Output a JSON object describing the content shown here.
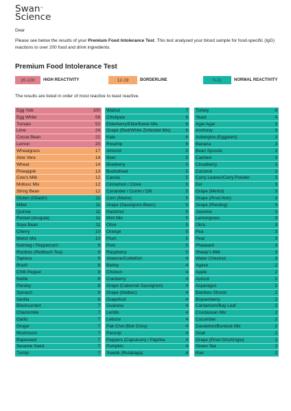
{
  "brand": {
    "line1": "Swan",
    "line2": "Science",
    "tm": "™"
  },
  "greeting": "Dear",
  "intro": {
    "pre": "Please see below the results of your ",
    "bold": "Premium Food Intolerance Test",
    "post": ". This test analysed your blood sample for food-specific (IgG) reactions to over 200 food and drink ingredients."
  },
  "title": "Premium Food Intolerance Test",
  "legend": [
    {
      "range": "20-100",
      "label": "HIGH REACTIVITY",
      "color": "#e0828e"
    },
    {
      "range": "12-19",
      "label": "BORDERLINE",
      "color": "#f6a96d"
    },
    {
      "range": "0-11",
      "label": "NORMAL REACTIVITY",
      "color": "#17b5a3"
    }
  ],
  "subnote": "The results are listed in order of most reactive to least reactive.",
  "colors": {
    "high": "#e0828e",
    "borderline": "#f6a96d",
    "normal": "#17b5a3"
  },
  "columns": [
    [
      {
        "name": "Egg Yolk",
        "value": "100"
      },
      {
        "name": "Egg White",
        "value": "58"
      },
      {
        "name": "Tomato",
        "value": "52"
      },
      {
        "name": "Lime",
        "value": "24"
      },
      {
        "name": "Cocoa Bean",
        "value": "22"
      },
      {
        "name": "Lemon",
        "value": "20"
      },
      {
        "name": "Wheatgrass",
        "value": "17"
      },
      {
        "name": "Aloe Vera",
        "value": "14"
      },
      {
        "name": "Wheat",
        "value": "14"
      },
      {
        "name": "Pineapple",
        "value": "13"
      },
      {
        "name": "Cow's Milk",
        "value": "12"
      },
      {
        "name": "Mollusc Mix",
        "value": "12"
      },
      {
        "name": "String Bean",
        "value": "12"
      },
      {
        "name": "Gluten (Gliadin)",
        "value": "11"
      },
      {
        "name": "Millet",
        "value": "11"
      },
      {
        "name": "Quinoa",
        "value": "11"
      },
      {
        "name": "Rocket (Arugula)",
        "value": "11"
      },
      {
        "name": "Soya Bean",
        "value": "11"
      },
      {
        "name": "Cherry",
        "value": "10"
      },
      {
        "name": "Melon Mix",
        "value": "10"
      },
      {
        "name": "Nutmeg / Peppercorn",
        "value": "9"
      },
      {
        "name": "Rooibos (Redbush Tea)",
        "value": "9"
      },
      {
        "name": "Tapioca",
        "value": "9"
      },
      {
        "name": "Brazil",
        "value": "8"
      },
      {
        "name": "Chilli Pepper",
        "value": "8"
      },
      {
        "name": "Nettle",
        "value": "8"
      },
      {
        "name": "Parsley",
        "value": "8"
      },
      {
        "name": "Spinach",
        "value": "8"
      },
      {
        "name": "Vanilla",
        "value": "8"
      },
      {
        "name": "Blackcurrant",
        "value": "7"
      },
      {
        "name": "Chamomile",
        "value": "7"
      },
      {
        "name": "Garlic",
        "value": "7"
      },
      {
        "name": "Ginger",
        "value": "7"
      },
      {
        "name": "Mushroom",
        "value": "7"
      },
      {
        "name": "Rapeseed",
        "value": "7"
      },
      {
        "name": "Sesame Seed",
        "value": "7"
      },
      {
        "name": "Turnip",
        "value": "7"
      }
    ],
    [
      {
        "name": "Walnut",
        "value": "7"
      },
      {
        "name": "Chickpea",
        "value": "6"
      },
      {
        "name": "Elderberry/Elderflower Mix",
        "value": "6"
      },
      {
        "name": "Grape (Red/White Zinfandel Mix)",
        "value": "6"
      },
      {
        "name": "Kale",
        "value": "6"
      },
      {
        "name": "Rosehip",
        "value": "6"
      },
      {
        "name": "Almond",
        "value": "5"
      },
      {
        "name": "Beet",
        "value": "5"
      },
      {
        "name": "Blueberry",
        "value": "5"
      },
      {
        "name": "Buckwheat",
        "value": "5"
      },
      {
        "name": "Cassia",
        "value": "5"
      },
      {
        "name": "Cinnamon / Clove",
        "value": "5"
      },
      {
        "name": "Coriander / Cumin / Dill",
        "value": "5"
      },
      {
        "name": "Corn (Maize)",
        "value": "5"
      },
      {
        "name": "Grape (Sauvignon Blanc)",
        "value": "5"
      },
      {
        "name": "Hazelnut",
        "value": "5"
      },
      {
        "name": "Mint Mix",
        "value": "5"
      },
      {
        "name": "Olive",
        "value": "5"
      },
      {
        "name": "Orange",
        "value": "5"
      },
      {
        "name": "Plum",
        "value": "5"
      },
      {
        "name": "Pork",
        "value": "5"
      },
      {
        "name": "Raspberry",
        "value": "5"
      },
      {
        "name": "Abalone/Cuttlefish",
        "value": "4"
      },
      {
        "name": "Barley",
        "value": "4"
      },
      {
        "name": "Chicken",
        "value": "4"
      },
      {
        "name": "Cranberry",
        "value": "4"
      },
      {
        "name": "Grape (Cabernet Sauvignon)",
        "value": "4"
      },
      {
        "name": "Grape (Malbec)",
        "value": "4"
      },
      {
        "name": "Grapefruit",
        "value": "4"
      },
      {
        "name": "Guarana",
        "value": "4"
      },
      {
        "name": "Lentils",
        "value": "4"
      },
      {
        "name": "Lettuce",
        "value": "4"
      },
      {
        "name": "Pak Choi (Bok Choy)",
        "value": "4"
      },
      {
        "name": "Parsnip",
        "value": "4"
      },
      {
        "name": "Peppers (Capsicum) / Paprika",
        "value": "4"
      },
      {
        "name": "Pumpkin",
        "value": "4"
      },
      {
        "name": "Swede (Rutabaga)",
        "value": "4"
      }
    ],
    [
      {
        "name": "Turkey",
        "value": "4"
      },
      {
        "name": "Yeast",
        "value": "4"
      },
      {
        "name": "Agar Agar",
        "value": "3"
      },
      {
        "name": "Anchovy",
        "value": "3"
      },
      {
        "name": "Aubergine (Eggplant)",
        "value": "3"
      },
      {
        "name": "Banana",
        "value": "3"
      },
      {
        "name": "Bean Sprouts",
        "value": "3"
      },
      {
        "name": "Cashew",
        "value": "3"
      },
      {
        "name": "Cloudberry",
        "value": "3"
      },
      {
        "name": "Coconut",
        "value": "3"
      },
      {
        "name": "Curry Leaves/Curry Powder",
        "value": "3"
      },
      {
        "name": "Eel",
        "value": "3"
      },
      {
        "name": "Grape (Merlot)",
        "value": "3"
      },
      {
        "name": "Grape (Pinot Noir)",
        "value": "3"
      },
      {
        "name": "Grape (Riesling)",
        "value": "3"
      },
      {
        "name": "Jasmine",
        "value": "3"
      },
      {
        "name": "Lemongrass",
        "value": "3"
      },
      {
        "name": "Okra",
        "value": "3"
      },
      {
        "name": "Pea",
        "value": "3"
      },
      {
        "name": "Pear",
        "value": "3"
      },
      {
        "name": "Pheasant",
        "value": "3"
      },
      {
        "name": "Sheep's Milk",
        "value": "3"
      },
      {
        "name": "Water Chestnut",
        "value": "3"
      },
      {
        "name": "Agave",
        "value": "2"
      },
      {
        "name": "Apple",
        "value": "2"
      },
      {
        "name": "Apricot",
        "value": "2"
      },
      {
        "name": "Asparagus",
        "value": "2"
      },
      {
        "name": "Bamboo Shoots",
        "value": "2"
      },
      {
        "name": "Boysenberry",
        "value": "2"
      },
      {
        "name": "Cardamom/Bay Leaf",
        "value": "2"
      },
      {
        "name": "Crustacean Mix",
        "value": "2"
      },
      {
        "name": "Cucumber",
        "value": "2"
      },
      {
        "name": "Dandelion/Burdock Mix",
        "value": "2"
      },
      {
        "name": "Goat",
        "value": "2"
      },
      {
        "name": "Grape (Pinot Gris/Grigio)",
        "value": "2"
      },
      {
        "name": "Green Tea",
        "value": "2"
      },
      {
        "name": "Kiwi",
        "value": "2"
      }
    ]
  ]
}
